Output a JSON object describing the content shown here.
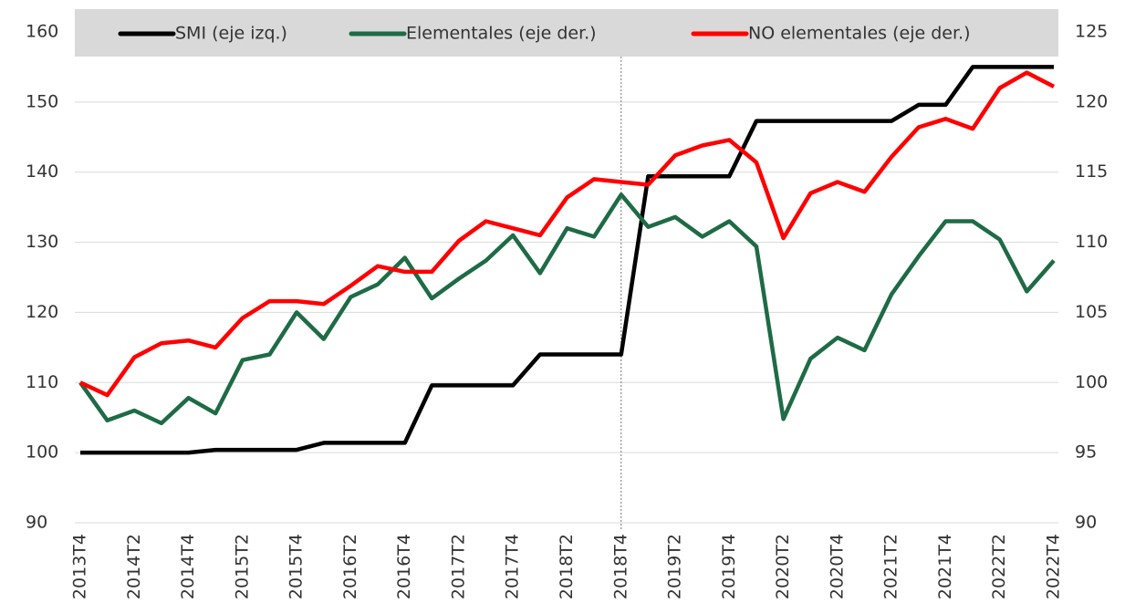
{
  "chart_data": {
    "type": "line",
    "categories": [
      "2013T4",
      null,
      "2014T2",
      null,
      "2014T4",
      null,
      "2015T2",
      null,
      "2015T4",
      null,
      "2016T2",
      null,
      "2016T4",
      null,
      "2017T2",
      null,
      "2017T4",
      null,
      "2018T2",
      null,
      "2018T4",
      null,
      "2019T2",
      null,
      "2019T4",
      null,
      "2020T2",
      null,
      "2020T4",
      null,
      "2021T2",
      null,
      "2021T4",
      null,
      "2022T2",
      null,
      "2022T4"
    ],
    "series": [
      {
        "name": "SMI (eje izq.)",
        "color": "#000000",
        "axis": "y",
        "values": [
          100,
          100,
          100,
          100,
          100,
          100.4,
          100.4,
          100.4,
          100.4,
          101.4,
          101.4,
          101.4,
          101.4,
          109.6,
          109.6,
          109.6,
          109.6,
          114,
          114,
          114,
          114,
          139.4,
          139.4,
          139.4,
          139.4,
          147.3,
          147.3,
          147.3,
          147.3,
          147.3,
          147.3,
          149.6,
          149.6,
          155,
          155,
          155,
          155
        ]
      },
      {
        "name": "Elementales (eje der.)",
        "color": "#1e6b46",
        "axis": "y2",
        "values": [
          100,
          97.3,
          98.0,
          97.1,
          98.9,
          97.8,
          101.6,
          102.0,
          105.0,
          103.1,
          106.1,
          107.0,
          108.9,
          106.0,
          107.4,
          108.7,
          110.5,
          107.8,
          111.0,
          110.4,
          113.4,
          111.1,
          111.8,
          110.4,
          111.5,
          109.7,
          97.4,
          101.7,
          103.2,
          102.3,
          106.3,
          109.0,
          111.5,
          111.5,
          110.2,
          106.5,
          108.7
        ]
      },
      {
        "name": "NO elementales (eje der.)",
        "color": "#ff0000",
        "axis": "y2",
        "values": [
          100,
          99.1,
          101.8,
          102.8,
          103.0,
          102.5,
          104.6,
          105.8,
          105.8,
          105.6,
          106.9,
          108.3,
          107.9,
          107.9,
          110.1,
          111.5,
          111.0,
          110.5,
          113.2,
          114.5,
          114.3,
          114.1,
          116.2,
          116.9,
          117.3,
          115.7,
          110.3,
          113.5,
          114.3,
          113.6,
          116.1,
          118.2,
          118.8,
          118.1,
          121.0,
          122.1,
          121.1
        ]
      }
    ],
    "ylim": [
      90,
      160
    ],
    "yticks": [
      90,
      100,
      110,
      120,
      130,
      140,
      150,
      160
    ],
    "y2lim": [
      90,
      125
    ],
    "y2ticks": [
      90,
      95,
      100,
      105,
      110,
      115,
      120,
      125
    ],
    "grid": true,
    "legend": "top",
    "vline": "2018T4"
  }
}
